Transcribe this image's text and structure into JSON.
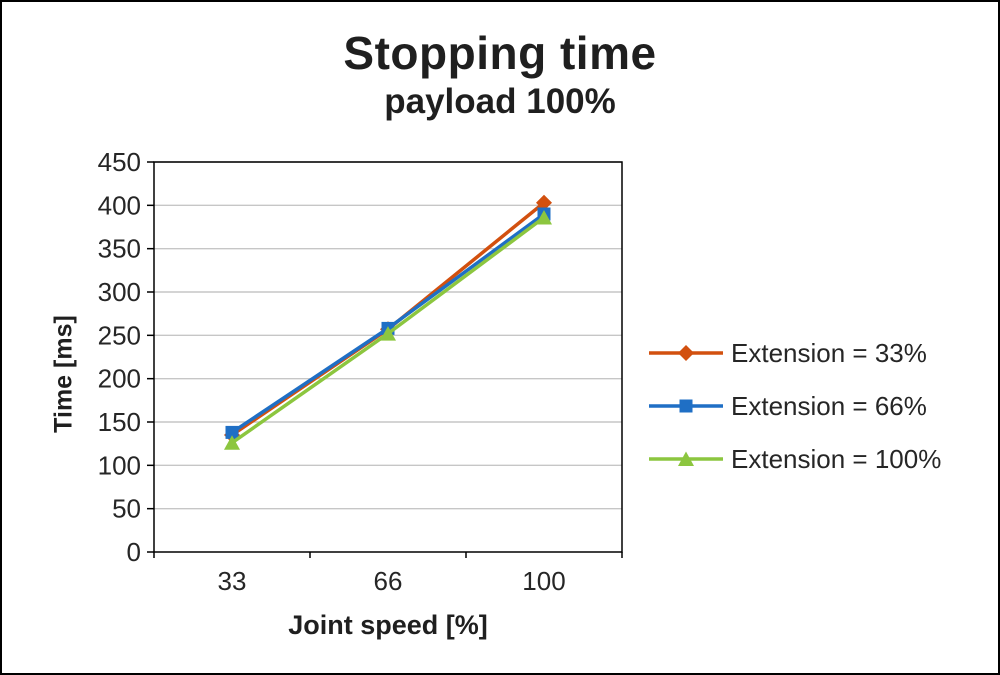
{
  "title": "Stopping time",
  "subtitle": "payload 100%",
  "chart_data": {
    "type": "line",
    "x_type": "category",
    "categories": [
      "33",
      "66",
      "100"
    ],
    "xlabel": "Joint speed [%]",
    "ylabel": "Time [ms]",
    "ylim": [
      0,
      450
    ],
    "ytick_step": 50,
    "grid": true,
    "legend_position": "right",
    "series": [
      {
        "name": "Extension = 33%",
        "values": [
          135,
          257,
          403
        ],
        "color": "#D2500F",
        "marker": "diamond"
      },
      {
        "name": "Extension = 66%",
        "values": [
          138,
          258,
          390
        ],
        "color": "#1F6FC5",
        "marker": "square"
      },
      {
        "name": "Extension = 100%",
        "values": [
          126,
          252,
          386
        ],
        "color": "#8CC63F",
        "marker": "triangle"
      }
    ],
    "colors": {
      "gridline": "#C6C6C6",
      "axis": "#000000",
      "tick_text": "#262626"
    }
  }
}
